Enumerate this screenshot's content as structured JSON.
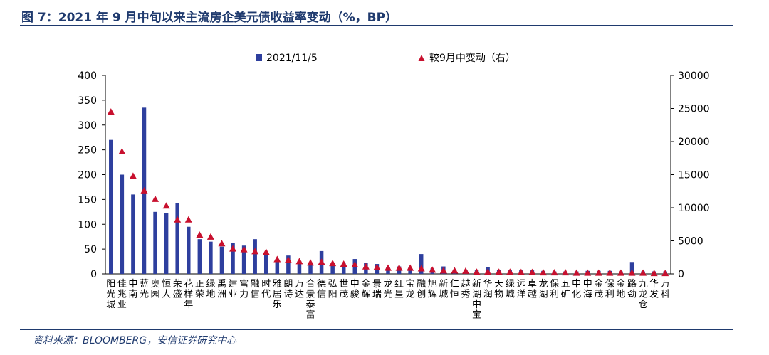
{
  "figure": {
    "title": "图 7：2021 年 9 月中旬以来主流房企美元债收益率变动（%，BP）",
    "source": "资料来源：BLOOMBERG，安信证券研究中心"
  },
  "chart_data": {
    "type": "bar",
    "categories": [
      "阳光城",
      "佳兆业",
      "中南",
      "蓝光",
      "奥园",
      "恒大",
      "荣盛",
      "花样年",
      "正荣",
      "绿地",
      "禹洲",
      "建业",
      "富力",
      "融信",
      "时代",
      "雅居乐",
      "朗诗",
      "万达",
      "合景泰富",
      "德信",
      "弘阳",
      "世茂",
      "中骏",
      "金辉",
      "景瑞",
      "龙光",
      "红星",
      "宝龙",
      "融创",
      "旭辉",
      "新城",
      "仁恒",
      "越秀",
      "新湖中宝",
      "华润",
      "天物",
      "绿城",
      "远洋",
      "卓越",
      "龙湖",
      "保利",
      "五矿",
      "中化",
      "中海",
      "金茂",
      "保利",
      "金地",
      "路劲",
      "九龙仓",
      "华发",
      "万科"
    ],
    "series": [
      {
        "name": "2021/11/5",
        "axis": "left",
        "marker": "bar",
        "values": [
          270,
          200,
          160,
          335,
          125,
          123,
          142,
          95,
          70,
          65,
          55,
          63,
          57,
          70,
          42,
          30,
          37,
          26,
          23,
          46,
          20,
          23,
          30,
          22,
          20,
          14,
          15,
          14,
          40,
          11,
          15,
          8,
          8,
          7,
          13,
          8,
          7,
          7,
          7,
          6,
          5,
          5,
          5,
          6,
          6,
          6,
          5,
          24,
          5,
          5,
          5
        ]
      },
      {
        "name": "较9月中变动（右）",
        "axis": "right",
        "marker": "triangle",
        "values": [
          24500,
          18500,
          14800,
          12600,
          11300,
          10300,
          8200,
          8200,
          5900,
          5600,
          4600,
          3800,
          3700,
          3400,
          3300,
          2200,
          2100,
          1900,
          1700,
          1800,
          1600,
          1500,
          1400,
          1100,
          1000,
          900,
          900,
          900,
          800,
          600,
          500,
          500,
          450,
          300,
          300,
          300,
          300,
          250,
          250,
          200,
          200,
          200,
          150,
          150,
          150,
          150,
          150,
          150,
          150,
          100,
          100
        ]
      }
    ],
    "y_left": {
      "ticks": [
        0,
        50,
        100,
        150,
        200,
        250,
        300,
        350,
        400
      ],
      "ylim": [
        0,
        400
      ]
    },
    "y_right": {
      "ticks": [
        0,
        5000,
        10000,
        15000,
        20000,
        25000,
        30000
      ],
      "ylim": [
        0,
        30000
      ]
    },
    "legend": {
      "placement": "top-center"
    },
    "grid": false,
    "colors": {
      "bar": "#2e3f9e",
      "marker": "#c8102e",
      "axis": "#000000",
      "title": "#1f3a6e"
    }
  }
}
